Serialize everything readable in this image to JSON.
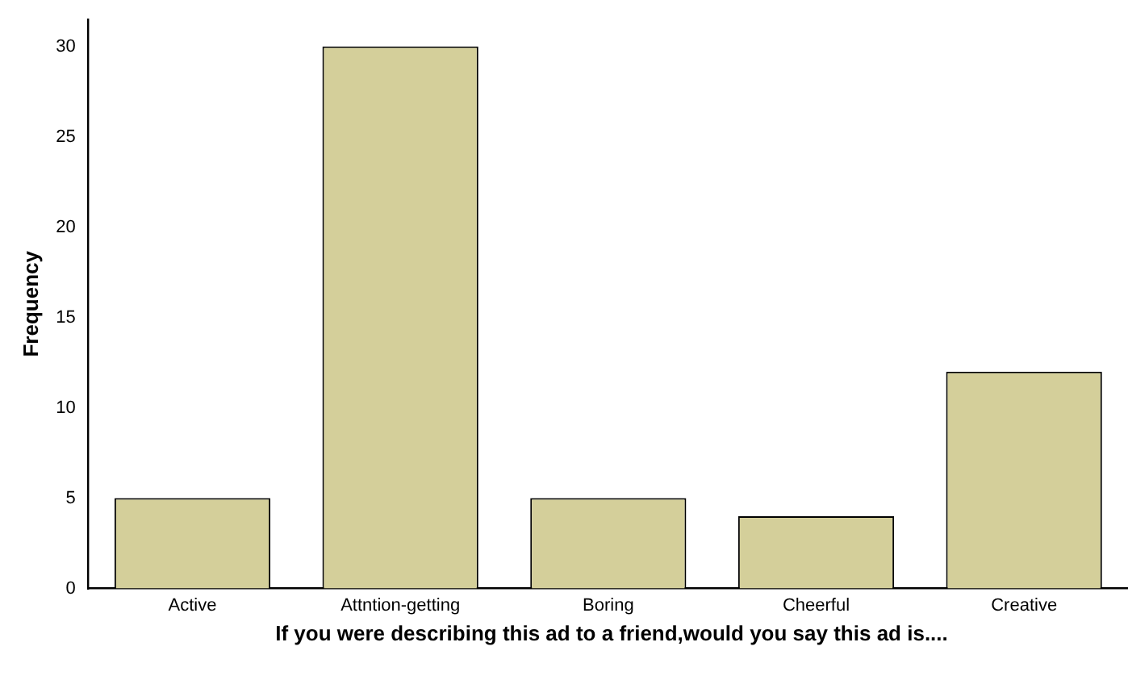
{
  "chart_data": {
    "type": "bar",
    "xlabel": "If you were describing this ad to a friend,would you say this ad is....",
    "ylabel": "Frequency",
    "categories": [
      "Active",
      "Attntion-getting",
      "Boring",
      "Cheerful",
      "Creative"
    ],
    "values": [
      5,
      30,
      5,
      4,
      12
    ],
    "color": "#d4cf9a",
    "ylim": [
      0,
      31.5
    ],
    "yticks": [
      0,
      5,
      10,
      15,
      20,
      25,
      30
    ],
    "grid": false,
    "legend": false
  }
}
